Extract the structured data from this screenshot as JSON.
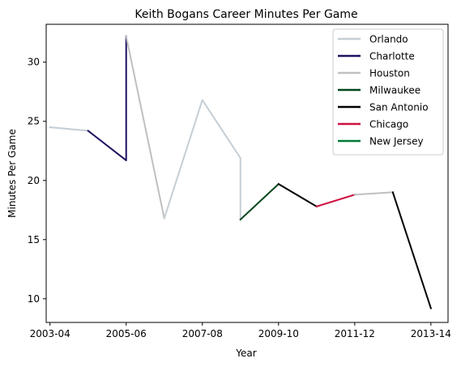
{
  "chart_data": {
    "type": "line",
    "title": "Keith Bogans Career Minutes Per Game",
    "xlabel": "Year",
    "ylabel": "Minutes Per Game",
    "x_ticks": [
      "2003-04",
      "2005-06",
      "2007-08",
      "2009-10",
      "2011-12",
      "2013-14"
    ],
    "y_ticks": [
      10,
      15,
      20,
      25,
      30
    ],
    "xlim": [
      -0.1,
      10.45
    ],
    "ylim": [
      8.0,
      33.2
    ],
    "grid": false,
    "legend_position": "top-right",
    "series": [
      {
        "name": "Orlando",
        "color": "#c4ced4",
        "points": [
          [
            0,
            24.5
          ],
          [
            1,
            24.2
          ]
        ]
      },
      {
        "name": "Charlotte",
        "color": "#1d1160",
        "points": [
          [
            1,
            24.2
          ],
          [
            2,
            21.7
          ],
          [
            2,
            32.2
          ]
        ]
      },
      {
        "name": "Houston",
        "color": "#bec0c2",
        "points": [
          [
            2,
            32.2
          ],
          [
            3,
            16.8
          ]
        ]
      },
      {
        "name": "Orlando",
        "color": "#c4ced4",
        "points": [
          [
            3,
            16.8
          ],
          [
            4,
            26.8
          ],
          [
            5,
            21.9
          ],
          [
            5,
            16.7
          ]
        ]
      },
      {
        "name": "Milwaukee",
        "color": "#00471b",
        "points": [
          [
            5,
            16.7
          ],
          [
            6,
            19.7
          ]
        ]
      },
      {
        "name": "San Antonio",
        "color": "#000000",
        "points": [
          [
            6,
            19.7
          ],
          [
            7,
            17.8
          ]
        ]
      },
      {
        "name": "Chicago",
        "color": "#ce1141",
        "points": [
          [
            7,
            17.8
          ],
          [
            8,
            18.8
          ]
        ]
      },
      {
        "name": "Houston",
        "color": "#bec0c2",
        "points": [
          [
            8,
            18.8
          ],
          [
            9,
            19.0
          ]
        ]
      },
      {
        "name": "San Antonio",
        "color": "#000000",
        "points": [
          [
            9,
            19.0
          ],
          [
            10,
            9.2
          ]
        ]
      }
    ],
    "legend": [
      {
        "name": "Orlando",
        "color": "#c4ced4"
      },
      {
        "name": "Charlotte",
        "color": "#1d1160"
      },
      {
        "name": "Houston",
        "color": "#bec0c2"
      },
      {
        "name": "Milwaukee",
        "color": "#00471b"
      },
      {
        "name": "San Antonio",
        "color": "#000000"
      },
      {
        "name": "Chicago",
        "color": "#ce1141"
      },
      {
        "name": "New Jersey",
        "color": "#007a33"
      }
    ]
  }
}
